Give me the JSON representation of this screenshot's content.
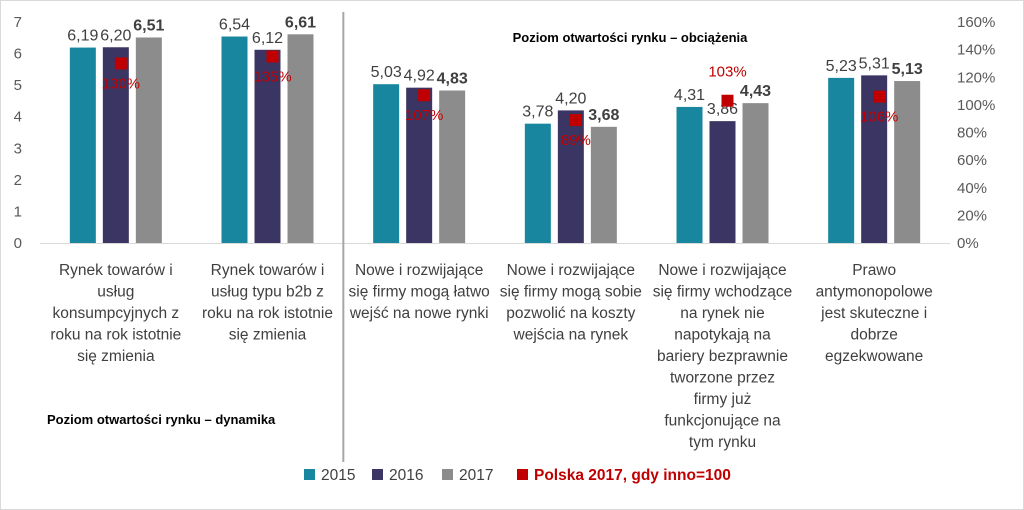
{
  "chart_data": {
    "type": "bar",
    "categories": [
      [
        "Rynek towarów i",
        "usług",
        "konsumpcyjnych z",
        "roku na rok istotnie",
        "się zmienia"
      ],
      [
        "Rynek towarów i",
        "usług typu b2b z",
        "roku na rok istotnie",
        "się zmienia"
      ],
      [
        "Nowe i rozwijające",
        "się firmy mogą łatwo",
        "wejść na nowe rynki"
      ],
      [
        "Nowe i rozwijające",
        "się firmy mogą sobie",
        "pozwolić na koszty",
        "wejścia na rynek"
      ],
      [
        "Nowe i rozwijające",
        "się firmy wchodzące",
        "na rynek nie",
        "napotykają na",
        "bariery bezprawnie",
        "tworzone przez",
        "firmy już",
        "funkcjonujące na",
        "tym rynku"
      ],
      [
        "Prawo",
        "antymonopolowe",
        "jest skuteczne i",
        "dobrze",
        "egzekwowane"
      ]
    ],
    "series": [
      {
        "name": "2015",
        "color": "#17869e",
        "values": [
          6.19,
          6.54,
          5.03,
          3.78,
          4.31,
          5.23
        ],
        "labels": [
          "6,19",
          "6,54",
          "5,03",
          "3,78",
          "4,31",
          "5,23"
        ]
      },
      {
        "name": "2016",
        "color": "#3b3564",
        "values": [
          6.2,
          6.12,
          4.92,
          4.2,
          3.86,
          5.31
        ],
        "labels": [
          "6,20",
          "6,12",
          "4,92",
          "4,20",
          "3,86",
          "5,31"
        ]
      },
      {
        "name": "2017",
        "color": "#8c8c8c",
        "values": [
          6.51,
          6.61,
          4.83,
          3.68,
          4.43,
          5.13
        ],
        "labels": [
          "6,51",
          "6,61",
          "4,83",
          "3,68",
          "4,43",
          "5,13"
        ]
      }
    ],
    "secondary_series": {
      "name": "Polska 2017, gdy inno=100",
      "color": "#c00000",
      "marker": "square",
      "values": [
        130,
        135,
        107,
        89,
        103,
        106
      ],
      "labels": [
        "130%",
        "135%",
        "107%",
        "89%",
        "103%",
        "106%"
      ]
    },
    "y_axis": {
      "ylim": [
        0,
        7
      ],
      "ticks": [
        "0",
        "1",
        "2",
        "3",
        "4",
        "5",
        "6",
        "7"
      ]
    },
    "y2_axis": {
      "ylim": [
        0,
        160
      ],
      "ticks": [
        "0%",
        "20%",
        "40%",
        "60%",
        "80%",
        "100%",
        "120%",
        "140%",
        "160%"
      ]
    },
    "annotations": {
      "group_right_title": "Poziom otwartości rynku – obciążenia",
      "group_left_title": "Poziom otwartości rynku – dynamika"
    },
    "legend": {
      "position": "bottom",
      "entries": [
        "2015",
        "2016",
        "2017",
        "Polska 2017, gdy inno=100"
      ]
    },
    "grid": false
  }
}
